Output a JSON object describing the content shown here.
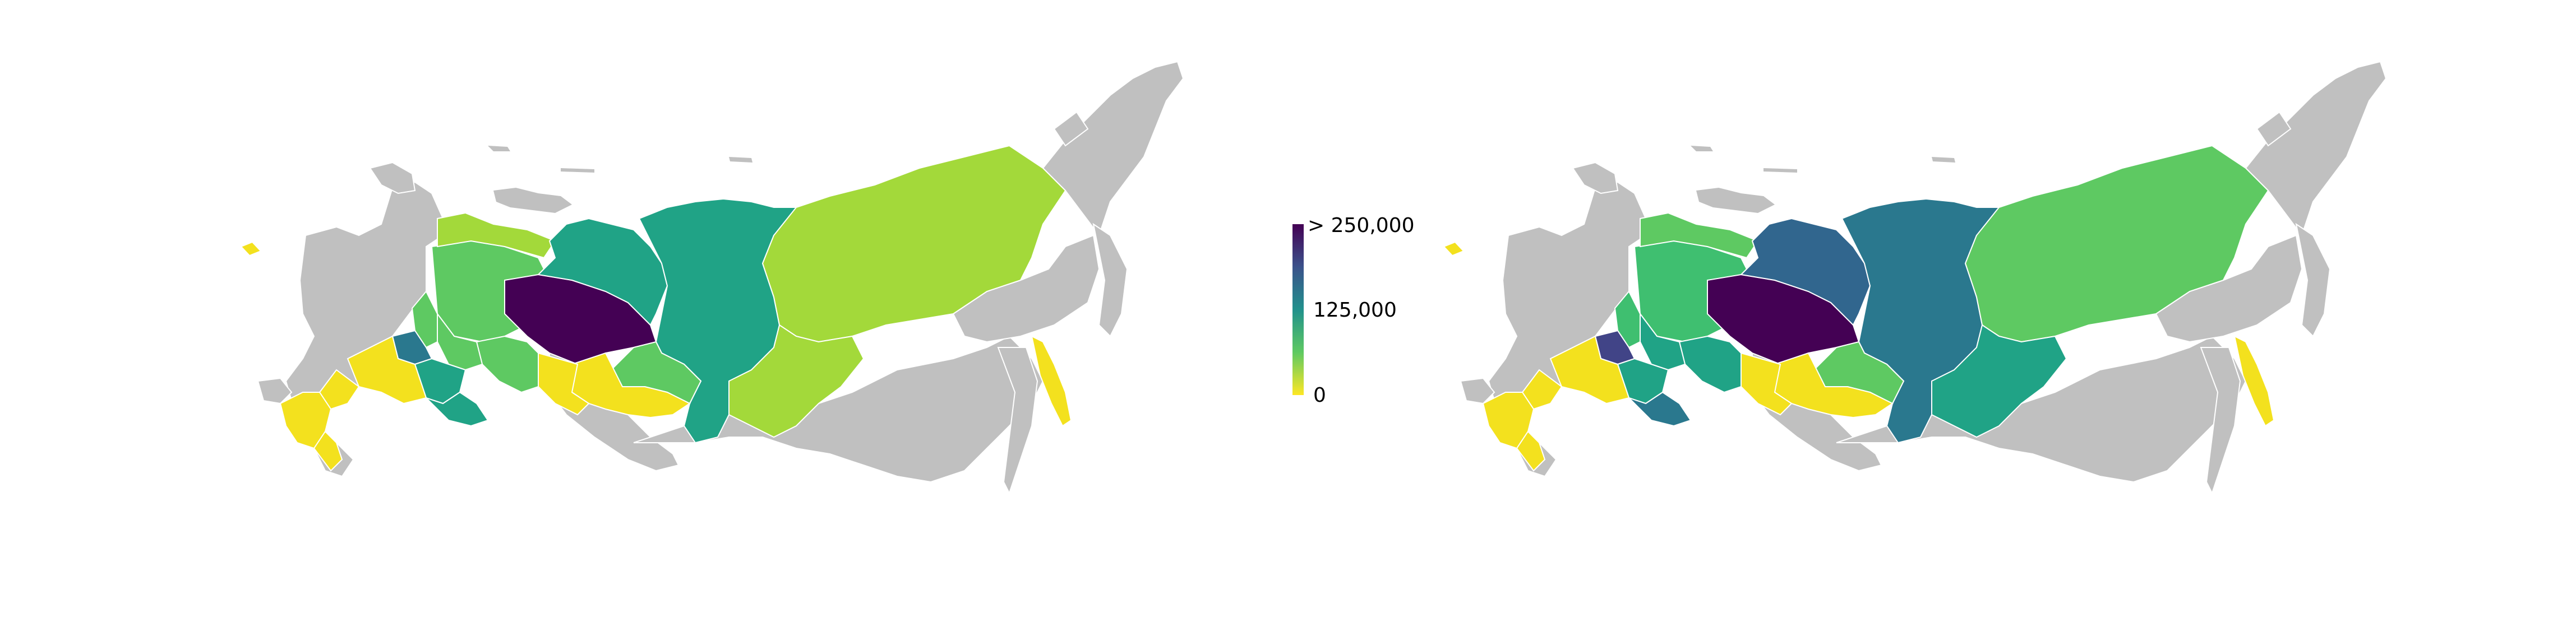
{
  "colorbar": {
    "colormap": "viridis",
    "ticks": [
      "> 250,000",
      "125,000",
      "0"
    ],
    "tick_values": [
      250000,
      125000,
      0
    ],
    "range": [
      0,
      250000
    ]
  },
  "colors": {
    "no_data": "#c0c0c0",
    "border": "#ffffff",
    "yellow": "#f3e11e",
    "yellow_green": "#a3d93a",
    "light_green": "#5ec962",
    "green": "#3fbf70",
    "teal": "#20a386",
    "teal_blue": "#2a788e",
    "blue": "#31668e",
    "indigo": "#414487",
    "dark_purple": "#440154"
  },
  "maps": [
    {
      "name": "left-map",
      "regions": [
        {
          "region": "komi",
          "color": "light_green"
        },
        {
          "region": "nenets",
          "color": "yellow_green"
        },
        {
          "region": "khanty-mansi",
          "color": "dark_purple"
        },
        {
          "region": "yamalo-nenets",
          "color": "teal"
        },
        {
          "region": "krasnoyarsk",
          "color": "teal"
        },
        {
          "region": "yakutia",
          "color": "yellow_green"
        },
        {
          "region": "irkutsk",
          "color": "yellow_green"
        },
        {
          "region": "tomsk",
          "color": "light_green"
        },
        {
          "region": "novosibirsk",
          "color": "yellow"
        },
        {
          "region": "omsk",
          "color": "yellow"
        },
        {
          "region": "tyumen",
          "color": "light_green"
        },
        {
          "region": "sverdlovsk",
          "color": "light_green"
        },
        {
          "region": "perm",
          "color": "light_green"
        },
        {
          "region": "tatarstan",
          "color": "teal_blue"
        },
        {
          "region": "bashkortostan",
          "color": "teal"
        },
        {
          "region": "orenburg",
          "color": "teal"
        },
        {
          "region": "samara",
          "color": "yellow"
        },
        {
          "region": "volgograd",
          "color": "yellow"
        },
        {
          "region": "krasnodar",
          "color": "yellow"
        },
        {
          "region": "stavropol",
          "color": "yellow"
        },
        {
          "region": "sakhalin",
          "color": "yellow"
        },
        {
          "region": "kaliningrad",
          "color": "yellow"
        }
      ]
    },
    {
      "name": "right-map",
      "regions": [
        {
          "region": "komi",
          "color": "green"
        },
        {
          "region": "nenets",
          "color": "light_green"
        },
        {
          "region": "khanty-mansi",
          "color": "dark_purple"
        },
        {
          "region": "yamalo-nenets",
          "color": "blue"
        },
        {
          "region": "krasnoyarsk",
          "color": "teal_blue"
        },
        {
          "region": "yakutia",
          "color": "light_green"
        },
        {
          "region": "irkutsk",
          "color": "teal"
        },
        {
          "region": "tomsk",
          "color": "light_green"
        },
        {
          "region": "novosibirsk",
          "color": "yellow"
        },
        {
          "region": "omsk",
          "color": "yellow"
        },
        {
          "region": "tyumen",
          "color": "teal"
        },
        {
          "region": "sverdlovsk",
          "color": "teal"
        },
        {
          "region": "perm",
          "color": "green"
        },
        {
          "region": "tatarstan",
          "color": "indigo"
        },
        {
          "region": "bashkortostan",
          "color": "teal"
        },
        {
          "region": "orenburg",
          "color": "teal_blue"
        },
        {
          "region": "samara",
          "color": "yellow"
        },
        {
          "region": "volgograd",
          "color": "yellow"
        },
        {
          "region": "krasnodar",
          "color": "yellow"
        },
        {
          "region": "stavropol",
          "color": "yellow"
        },
        {
          "region": "sakhalin",
          "color": "yellow"
        },
        {
          "region": "kaliningrad",
          "color": "yellow"
        }
      ]
    }
  ]
}
